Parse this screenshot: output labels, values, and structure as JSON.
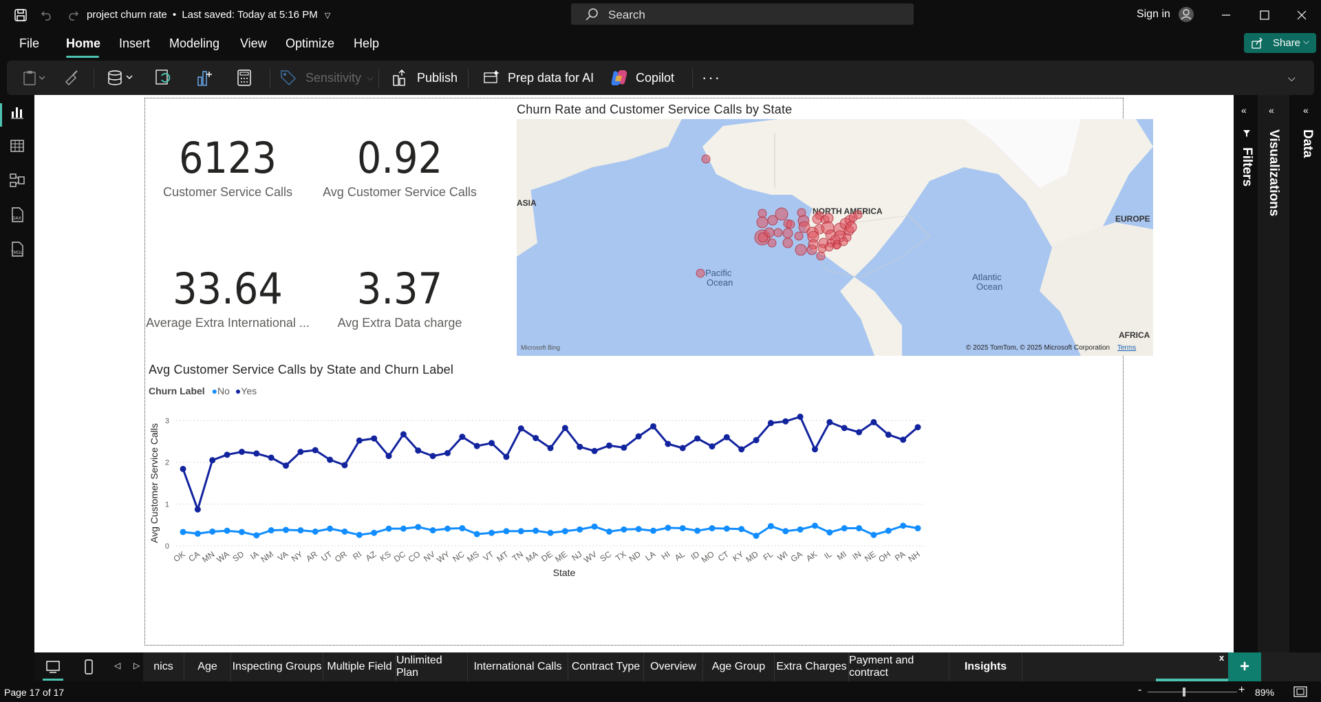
{
  "titlebar": {
    "doc_title": "project churn rate",
    "saved_status": "Last saved: Today at 5:16 PM",
    "search_placeholder": "Search",
    "signin_label": "Sign in"
  },
  "menu": [
    "File",
    "Home",
    "Insert",
    "Modeling",
    "View",
    "Optimize",
    "Help"
  ],
  "share_label": "Share",
  "ribbon": {
    "sensitivity": "Sensitivity",
    "publish": "Publish",
    "prep_data": "Prep data for AI",
    "copilot": "Copilot"
  },
  "left_rail": [
    "report-view-icon",
    "table-view-icon",
    "model-view-icon",
    "dax-query-icon",
    "tmdl-view-icon"
  ],
  "right_panes": {
    "filters": "Filters",
    "visualizations": "Visualizations",
    "data": "Data"
  },
  "kpis": [
    {
      "value": "6123",
      "label": "Customer Service Calls"
    },
    {
      "value": "0.92",
      "label": "Avg Customer Service Calls"
    },
    {
      "value": "33.64",
      "label": "Average Extra International ..."
    },
    {
      "value": "3.37",
      "label": "Avg Extra Data charge"
    }
  ],
  "map": {
    "title": "Churn Rate and Customer Service Calls by State",
    "labels": {
      "north_america": "NORTH AMERICA",
      "europe": "EUROPE",
      "asia": "ASIA",
      "africa": "AFRICA",
      "pacific": "Pacific",
      "pacific2": "Ocean",
      "atlantic": "Atlantic",
      "atlantic2": "Ocean"
    },
    "attribution": "© 2025 TomTom, © 2025 Microsoft Corporation",
    "terms": "Terms",
    "bing": "Microsoft Bing",
    "bubble_color": "#e0505c"
  },
  "chart_data": {
    "type": "line",
    "title": "Avg Customer Service Calls by State and Churn Label",
    "legend_title": "Churn Label",
    "legend_placement": "top-left",
    "xlabel": "State",
    "ylabel": "Avg Customer Service Calls",
    "ylim": [
      0,
      3
    ],
    "yticks": [
      0,
      1,
      2,
      3
    ],
    "grid": true,
    "categories": [
      "OK",
      "CA",
      "MN",
      "WA",
      "SD",
      "IA",
      "NM",
      "VA",
      "NY",
      "AR",
      "UT",
      "OR",
      "RI",
      "AZ",
      "KS",
      "DC",
      "CO",
      "NV",
      "WY",
      "NC",
      "MS",
      "VT",
      "MT",
      "TN",
      "MA",
      "DE",
      "ME",
      "NJ",
      "WV",
      "SC",
      "TX",
      "ND",
      "LA",
      "HI",
      "AL",
      "ID",
      "MO",
      "CT",
      "KY",
      "MD",
      "FL",
      "WI",
      "GA",
      "AK",
      "IL",
      "MI",
      "IN",
      "NE",
      "OH",
      "PA",
      "NH"
    ],
    "series": [
      {
        "name": "No",
        "color": "#118dff",
        "values": [
          0.33,
          0.29,
          0.34,
          0.36,
          0.33,
          0.25,
          0.37,
          0.38,
          0.37,
          0.34,
          0.41,
          0.34,
          0.26,
          0.31,
          0.41,
          0.41,
          0.45,
          0.37,
          0.41,
          0.42,
          0.28,
          0.31,
          0.35,
          0.35,
          0.36,
          0.31,
          0.35,
          0.39,
          0.46,
          0.34,
          0.39,
          0.4,
          0.36,
          0.43,
          0.42,
          0.36,
          0.42,
          0.41,
          0.4,
          0.24,
          0.47,
          0.35,
          0.39,
          0.48,
          0.32,
          0.42,
          0.42,
          0.26,
          0.36,
          0.48,
          0.42
        ]
      },
      {
        "name": "Yes",
        "color": "#12239e",
        "values": [
          1.84,
          0.87,
          2.05,
          2.18,
          2.25,
          2.21,
          2.11,
          1.92,
          2.25,
          2.29,
          2.06,
          1.93,
          2.52,
          2.57,
          2.15,
          2.67,
          2.28,
          2.15,
          2.22,
          2.61,
          2.39,
          2.46,
          2.13,
          2.81,
          2.58,
          2.34,
          2.82,
          2.37,
          2.27,
          2.4,
          2.35,
          2.62,
          2.86,
          2.44,
          2.34,
          2.57,
          2.38,
          2.6,
          2.31,
          2.53,
          2.94,
          2.98,
          3.09,
          2.31,
          2.96,
          2.82,
          2.72,
          2.96,
          2.66,
          2.54,
          2.84
        ]
      }
    ]
  },
  "tabs": [
    "nics",
    "Age",
    "Inspecting Groups",
    "Multiple Field",
    "Unlimited Plan",
    "International Calls",
    "Contract Type",
    "Overview",
    "Age Group",
    "Extra Charges",
    "Payment and contract",
    "Insights"
  ],
  "status": {
    "page": "Page 17 of 17",
    "zoom": "89%"
  }
}
